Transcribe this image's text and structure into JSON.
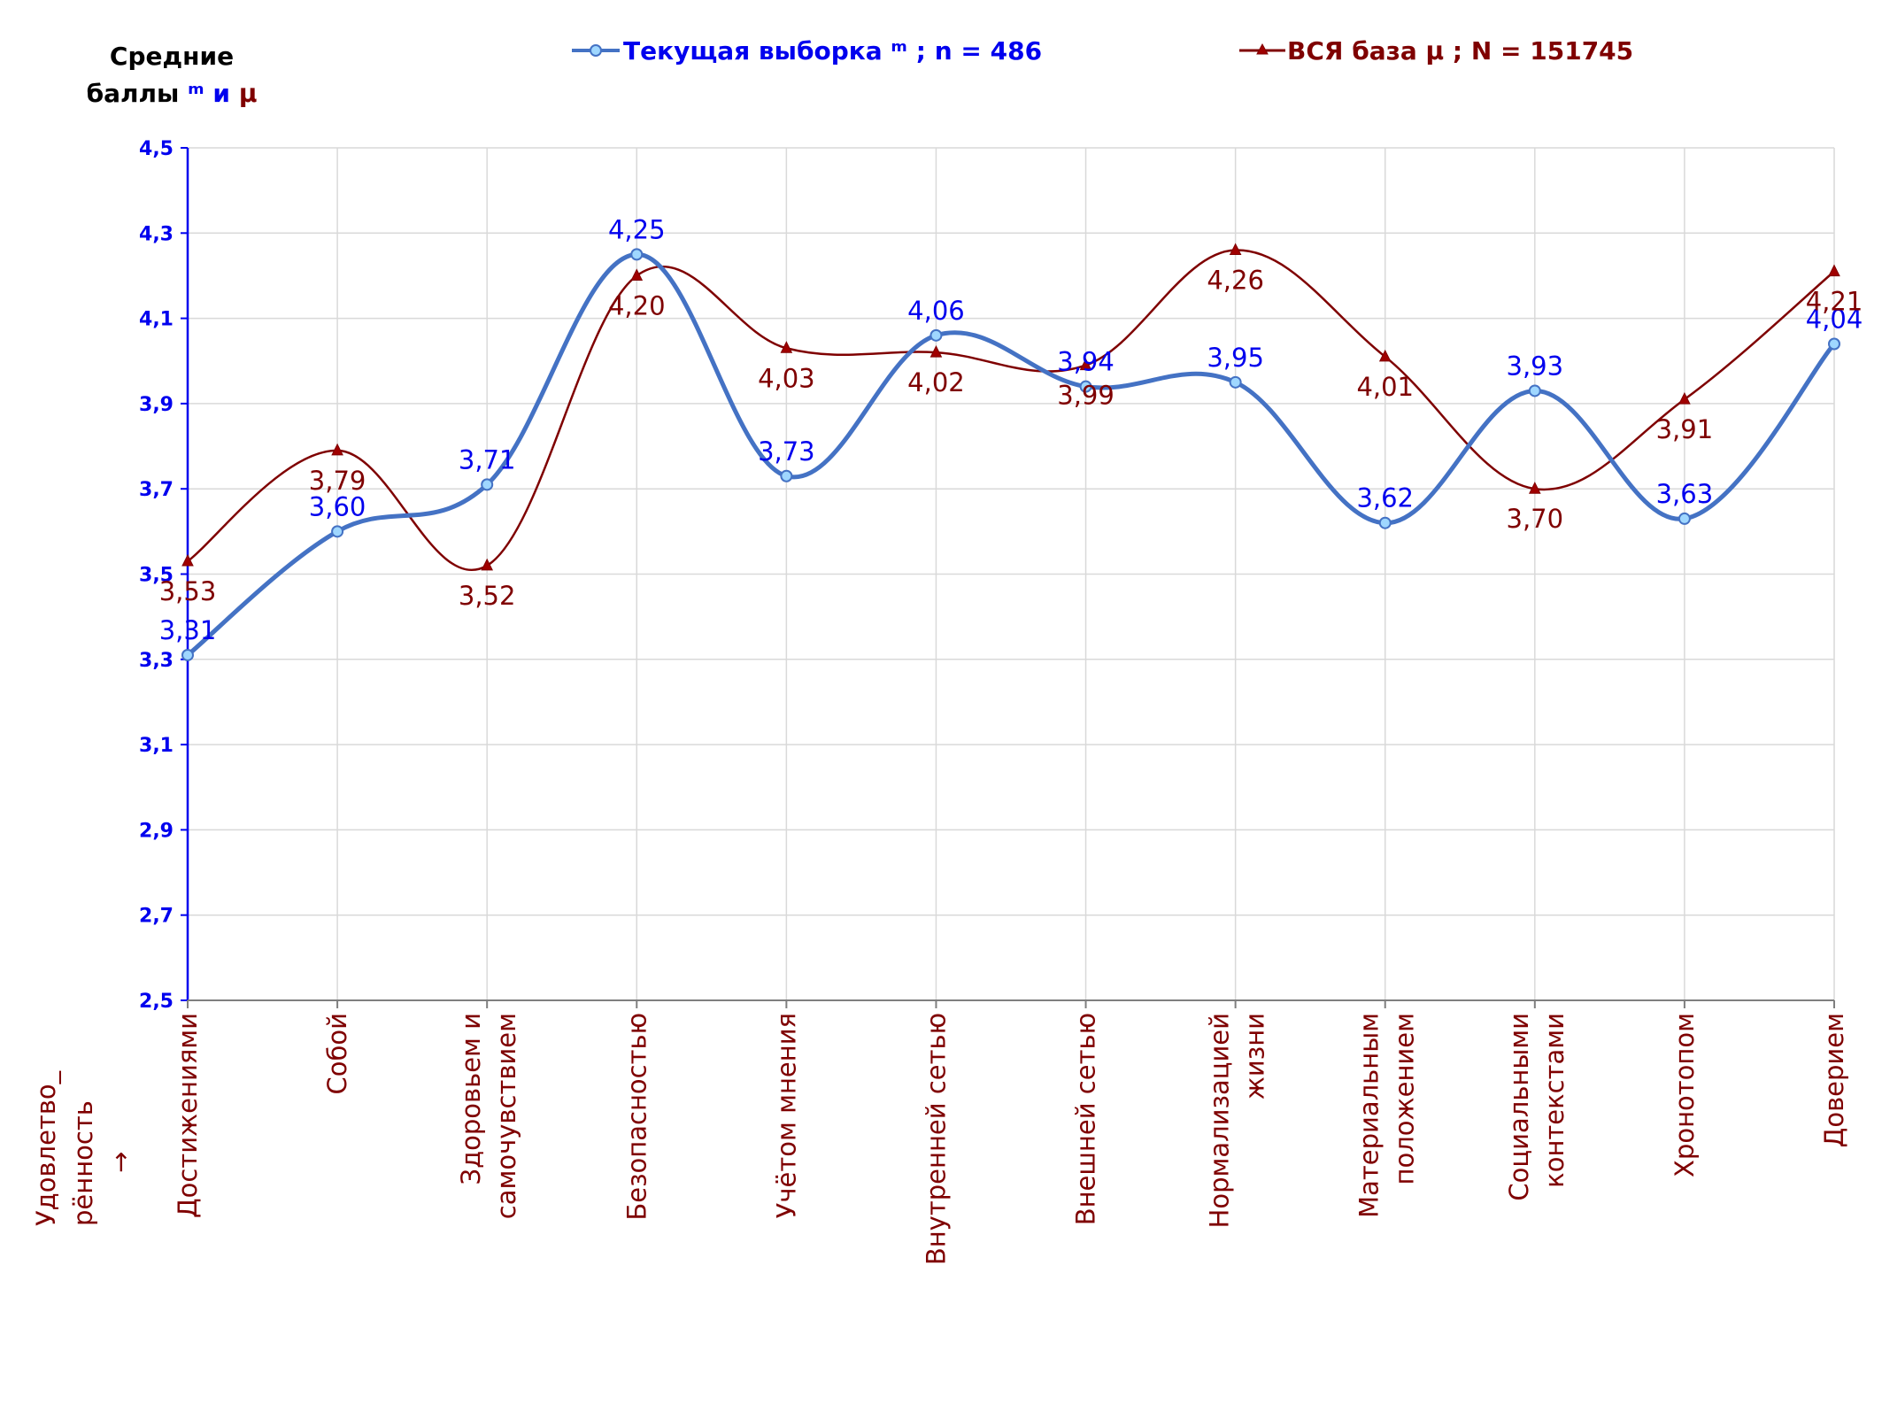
{
  "chart_data": {
    "type": "line",
    "ylim": [
      2.5,
      4.5
    ],
    "yticks": [
      "2,5",
      "2,7",
      "2,9",
      "3,1",
      "3,3",
      "3,5",
      "3,7",
      "3,9",
      "4,1",
      "4,3",
      "4,5"
    ],
    "ytick_values": [
      2.5,
      2.7,
      2.9,
      3.1,
      3.3,
      3.5,
      3.7,
      3.9,
      4.1,
      4.3,
      4.5
    ],
    "ylabel_line1": "Средние",
    "ylabel_line2_prefix": "баллы ",
    "ylabel_sym_cur": "ᵐ",
    "ylabel_and": " и ",
    "ylabel_sym_base": "μ",
    "xlabel_lines": [
      "Удовлетво_",
      "рённость",
      "→"
    ],
    "categories": [
      [
        "Достижениями"
      ],
      [
        "Собой"
      ],
      [
        "Здоровьем и",
        "самочувствием"
      ],
      [
        "Безопасностью"
      ],
      [
        "Учётом мнения"
      ],
      [
        "Внутренней сетью"
      ],
      [
        "Внешней сетью"
      ],
      [
        "Нормализацией",
        "жизни"
      ],
      [
        "Материальным",
        "положением"
      ],
      [
        "Социальными",
        "контекстами"
      ],
      [
        "Хронотопом"
      ],
      [
        "Доверием"
      ]
    ],
    "series": [
      {
        "name": "Текущая выборка ᵐ ; n = 486",
        "color": "#4472c4",
        "label_color": "#0000ee",
        "marker": "circle",
        "values": [
          3.31,
          3.6,
          3.71,
          4.25,
          3.73,
          4.06,
          3.94,
          3.95,
          3.62,
          3.93,
          3.63,
          4.04
        ],
        "labels": [
          "3,31",
          "3,60",
          "3,71",
          "4,25",
          "3,73",
          "4,06",
          "3,94",
          "3,95",
          "3,62",
          "3,93",
          "3,63",
          "4,04"
        ]
      },
      {
        "name": "ВСЯ база μ ; N = 151745",
        "color": "#7f0000",
        "label_color": "#7f0000",
        "marker": "triangle",
        "values": [
          3.53,
          3.79,
          3.52,
          4.2,
          4.03,
          4.02,
          3.99,
          4.26,
          4.01,
          3.7,
          3.91,
          4.21
        ],
        "labels": [
          "3,53",
          "3,79",
          "3,52",
          "4,20",
          "4,03",
          "4,02",
          "3,99",
          "4,26",
          "4,01",
          "3,70",
          "3,91",
          "4,21"
        ]
      }
    ],
    "grid": true,
    "legend": "top"
  }
}
